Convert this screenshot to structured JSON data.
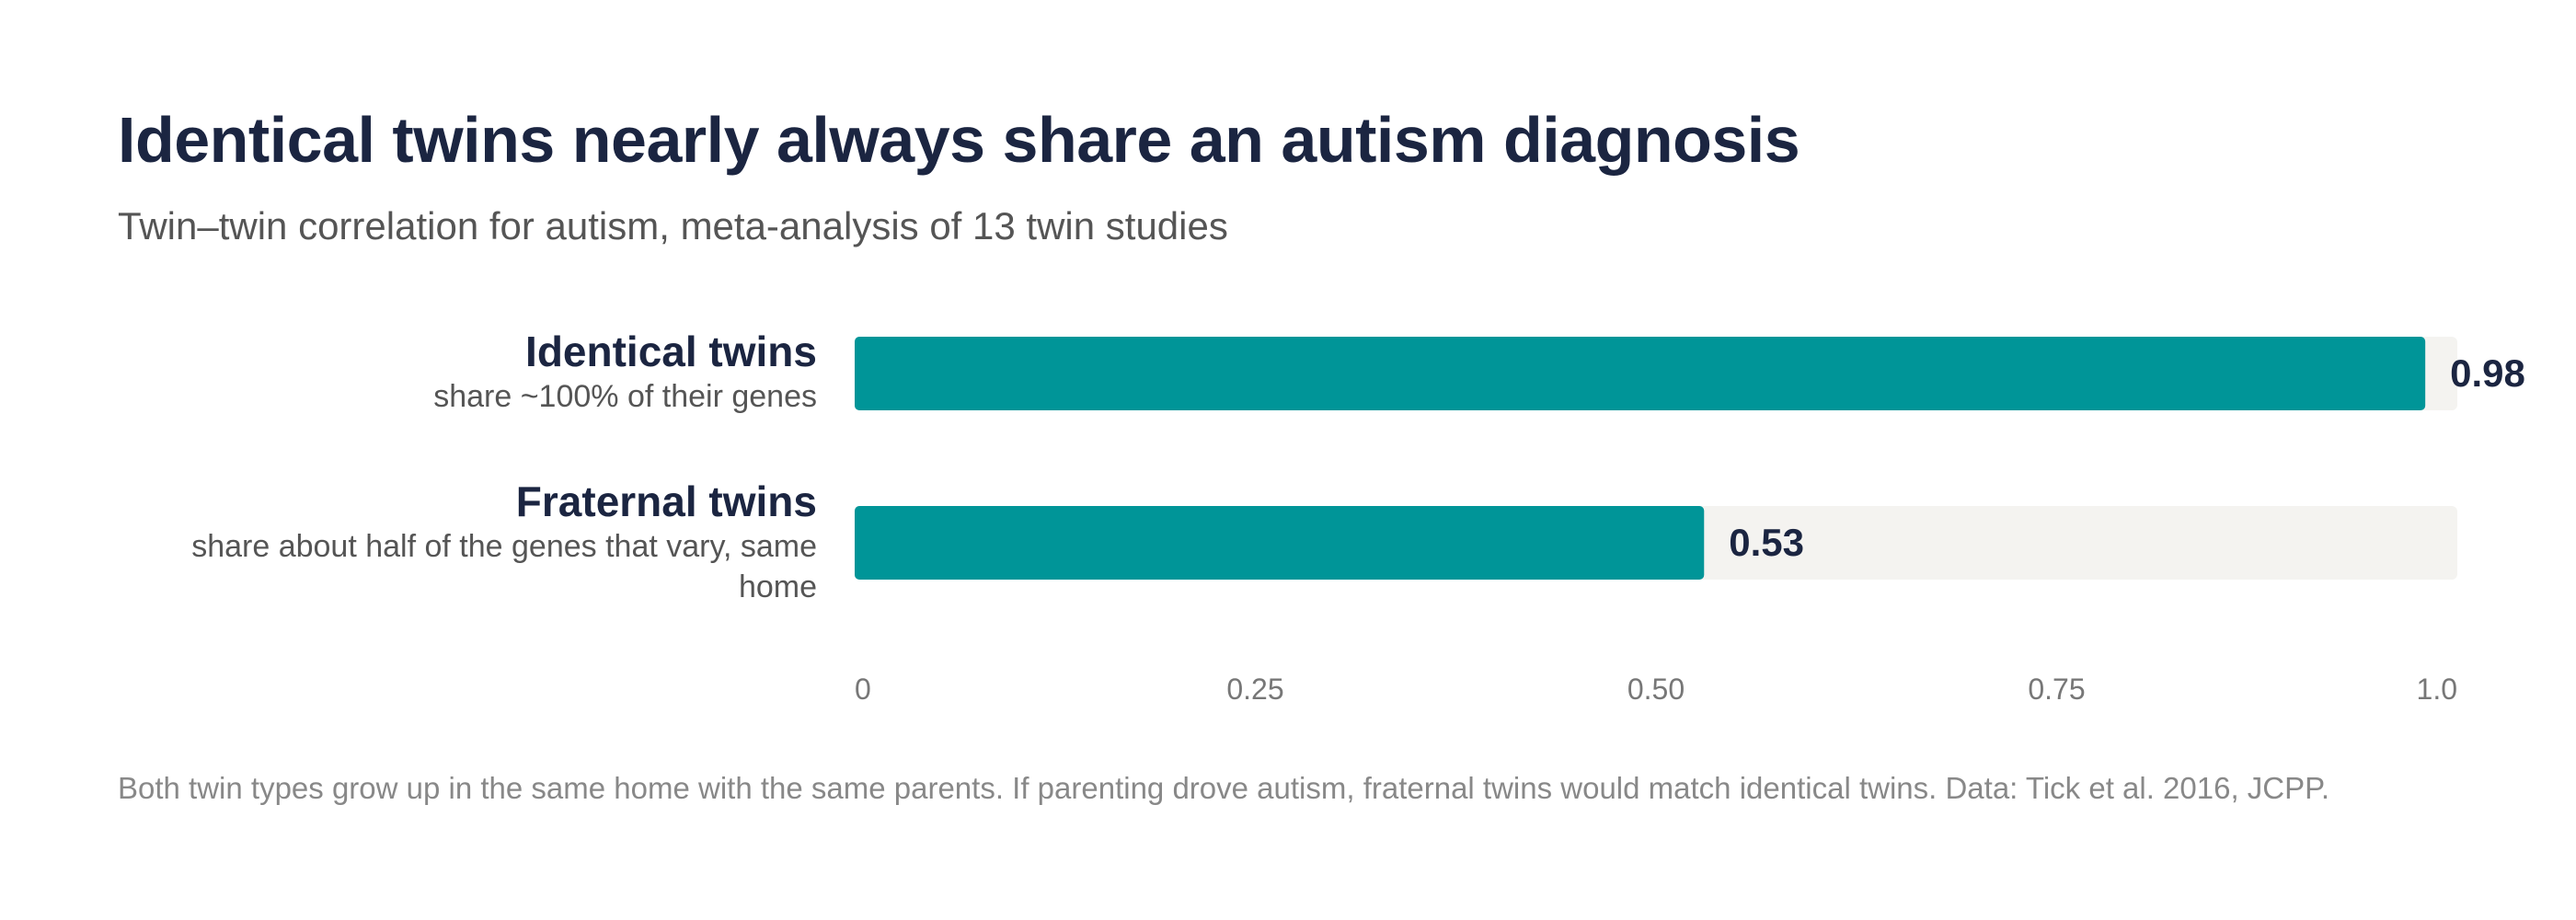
{
  "chart_data": {
    "type": "bar",
    "orientation": "horizontal",
    "title": "Identical twins nearly always share an autism diagnosis",
    "subtitle": "Twin–twin correlation for autism, meta-analysis of 13 twin studies",
    "categories": [
      "Identical twins",
      "Fraternal twins"
    ],
    "category_descriptions": [
      "share ~100% of their genes",
      "share about half of the genes that vary, same home"
    ],
    "values": [
      0.98,
      0.53
    ],
    "value_labels": [
      "0.98",
      "0.53"
    ],
    "xlim": [
      0,
      1.0
    ],
    "x_ticks": [
      0,
      0.25,
      0.5,
      0.75,
      1.0
    ],
    "x_tick_labels": [
      "0",
      "0.25",
      "0.50",
      "0.75",
      "1.0"
    ],
    "grid": false,
    "legend": "none",
    "footnote": "Both twin types grow up in the same home with the same parents. If parenting drove autism, fraternal twins would match identical twins. Data: Tick et al. 2016, JCPP.",
    "colors": {
      "bar": "#009598",
      "track": "#f4f3f0",
      "value_text": "#1b2541",
      "tick_text": "#777777"
    }
  }
}
